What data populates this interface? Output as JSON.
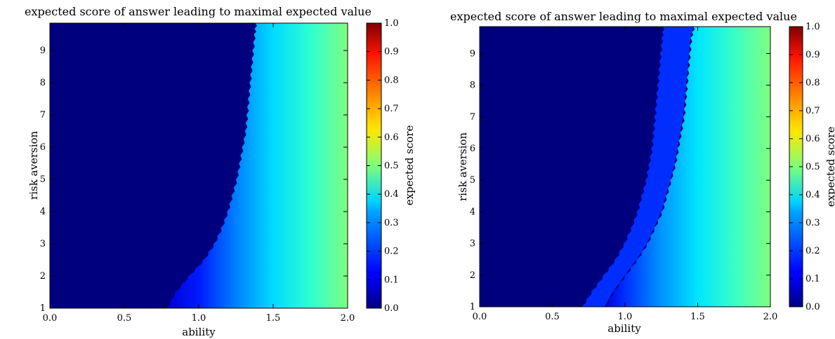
{
  "chart_data": [
    {
      "type": "heatmap",
      "title": "expected score of answer leading to maximal expected value",
      "xlabel": "ability",
      "ylabel": "risk aversion",
      "xlim": [
        0.0,
        2.0
      ],
      "ylim": [
        1,
        9.85
      ],
      "x_ticks": [
        0.0,
        0.5,
        1.0,
        1.5,
        2.0
      ],
      "x_tick_labels": [
        "0.0",
        "0.5",
        "1.0",
        "1.5",
        "2.0"
      ],
      "y_ticks": [
        1,
        2,
        3,
        4,
        5,
        6,
        7,
        8,
        9
      ],
      "y_tick_labels": [
        "1",
        "2",
        "3",
        "4",
        "5",
        "6",
        "7",
        "8",
        "9"
      ],
      "colormap": "jet",
      "colorbar": {
        "label": "expected score",
        "range": [
          0.0,
          1.0
        ],
        "ticks": [
          0.0,
          0.1,
          0.2,
          0.3,
          0.4,
          0.5,
          0.6,
          0.7,
          0.8,
          0.9,
          1.0
        ],
        "tick_labels": [
          "0.0",
          "0.1",
          "0.2",
          "0.3",
          "0.4",
          "0.5",
          "0.6",
          "0.7",
          "0.8",
          "0.9",
          "1.0"
        ]
      },
      "boundaries": [
        {
          "from": 0.0,
          "to": 0.2,
          "points": [
            [
              0.78,
              1.0
            ],
            [
              0.84,
              1.5
            ],
            [
              0.93,
              2.0
            ],
            [
              1.03,
              2.5
            ],
            [
              1.1,
              3.0
            ],
            [
              1.15,
              3.5
            ],
            [
              1.19,
              4.0
            ],
            [
              1.22,
              4.5
            ],
            [
              1.25,
              5.0
            ],
            [
              1.27,
              5.5
            ],
            [
              1.29,
              6.0
            ],
            [
              1.31,
              6.5
            ],
            [
              1.32,
              7.0
            ],
            [
              1.33,
              7.5
            ],
            [
              1.34,
              8.0
            ],
            [
              1.35,
              8.5
            ],
            [
              1.36,
              9.0
            ],
            [
              1.37,
              9.5
            ],
            [
              1.38,
              9.85
            ]
          ]
        }
      ],
      "gradient": {
        "value_at_left_edge": 0.08,
        "stops": [
          [
            0.78,
            0.08
          ],
          [
            1.0,
            0.15
          ],
          [
            1.25,
            0.25
          ],
          [
            1.5,
            0.34
          ],
          [
            1.75,
            0.42
          ],
          [
            2.0,
            0.5
          ]
        ]
      }
    },
    {
      "type": "heatmap",
      "title": "expected score of answer leading to maximal expected value",
      "xlabel": "ability",
      "ylabel": "risk aversion",
      "xlim": [
        0.0,
        2.0
      ],
      "ylim": [
        1,
        9.85
      ],
      "x_ticks": [
        0.0,
        0.5,
        1.0,
        1.5,
        2.0
      ],
      "x_tick_labels": [
        "0.0",
        "0.5",
        "1.0",
        "1.5",
        "2.0"
      ],
      "y_ticks": [
        1,
        2,
        3,
        4,
        5,
        6,
        7,
        8,
        9
      ],
      "y_tick_labels": [
        "1",
        "2",
        "3",
        "4",
        "5",
        "6",
        "7",
        "8",
        "9"
      ],
      "colormap": "jet",
      "colorbar": {
        "label": "expected score",
        "range": [
          0.0,
          1.0
        ],
        "ticks": [
          0.0,
          0.1,
          0.2,
          0.3,
          0.4,
          0.5,
          0.6,
          0.7,
          0.8,
          0.9,
          1.0
        ],
        "tick_labels": [
          "0.0",
          "0.1",
          "0.2",
          "0.3",
          "0.4",
          "0.5",
          "0.6",
          "0.7",
          "0.8",
          "0.9",
          "1.0"
        ]
      },
      "boundaries": [
        {
          "from": 0.0,
          "to": 0.12,
          "points": [
            [
              0.7,
              1.0
            ],
            [
              0.77,
              1.5
            ],
            [
              0.85,
              2.0
            ],
            [
              0.93,
              2.5
            ],
            [
              0.99,
              3.0
            ],
            [
              1.04,
              3.5
            ],
            [
              1.08,
              4.0
            ],
            [
              1.11,
              4.5
            ],
            [
              1.14,
              5.0
            ],
            [
              1.16,
              5.5
            ],
            [
              1.18,
              6.0
            ],
            [
              1.19,
              6.5
            ],
            [
              1.2,
              7.0
            ],
            [
              1.21,
              7.5
            ],
            [
              1.22,
              8.0
            ],
            [
              1.23,
              8.5
            ],
            [
              1.24,
              9.0
            ],
            [
              1.25,
              9.5
            ],
            [
              1.26,
              9.85
            ]
          ]
        },
        {
          "from": 0.12,
          "to": 0.22,
          "points": [
            [
              0.86,
              1.0
            ],
            [
              0.92,
              1.5
            ],
            [
              1.0,
              2.0
            ],
            [
              1.08,
              2.5
            ],
            [
              1.15,
              3.0
            ],
            [
              1.2,
              3.5
            ],
            [
              1.25,
              4.0
            ],
            [
              1.28,
              4.5
            ],
            [
              1.31,
              5.0
            ],
            [
              1.34,
              5.5
            ],
            [
              1.36,
              6.0
            ],
            [
              1.38,
              6.5
            ],
            [
              1.4,
              7.0
            ],
            [
              1.41,
              7.5
            ],
            [
              1.42,
              8.0
            ],
            [
              1.43,
              8.5
            ],
            [
              1.44,
              9.0
            ],
            [
              1.45,
              9.5
            ],
            [
              1.47,
              9.85
            ]
          ]
        }
      ],
      "gradient": {
        "value_at_left_edge": 0.09,
        "stops": [
          [
            0.86,
            0.09
          ],
          [
            1.0,
            0.17
          ],
          [
            1.25,
            0.27
          ],
          [
            1.5,
            0.35
          ],
          [
            1.75,
            0.43
          ],
          [
            2.0,
            0.5
          ]
        ]
      }
    }
  ]
}
